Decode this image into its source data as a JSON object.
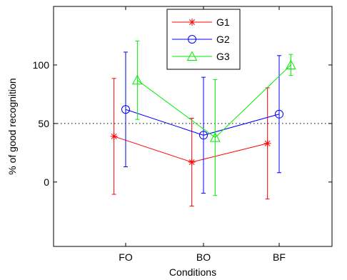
{
  "chart_data": {
    "type": "line",
    "title": "",
    "xlabel": "Conditions",
    "ylabel": "% of good recognition",
    "categories": [
      "FO",
      "BO",
      "BF"
    ],
    "ylim": [
      -55,
      150
    ],
    "yticks": [
      0,
      50,
      100
    ],
    "reference_line": 50,
    "grid": false,
    "legend": "top-center",
    "series": [
      {
        "name": "G1",
        "color": "#ff0000",
        "marker": "asterisk",
        "values": [
          39,
          17,
          33
        ],
        "error": [
          49.5,
          37.5,
          47.5
        ],
        "x_offset": -0.15
      },
      {
        "name": "G2",
        "color": "#0000ff",
        "marker": "circle",
        "values": [
          62,
          40,
          58
        ],
        "error": [
          49,
          49.5,
          50
        ],
        "x_offset": 0
      },
      {
        "name": "G3",
        "color": "#00ee00",
        "marker": "triangle",
        "values": [
          87,
          38,
          100
        ],
        "error": [
          33.5,
          49.5,
          9
        ],
        "x_offset": 0.15
      }
    ]
  }
}
